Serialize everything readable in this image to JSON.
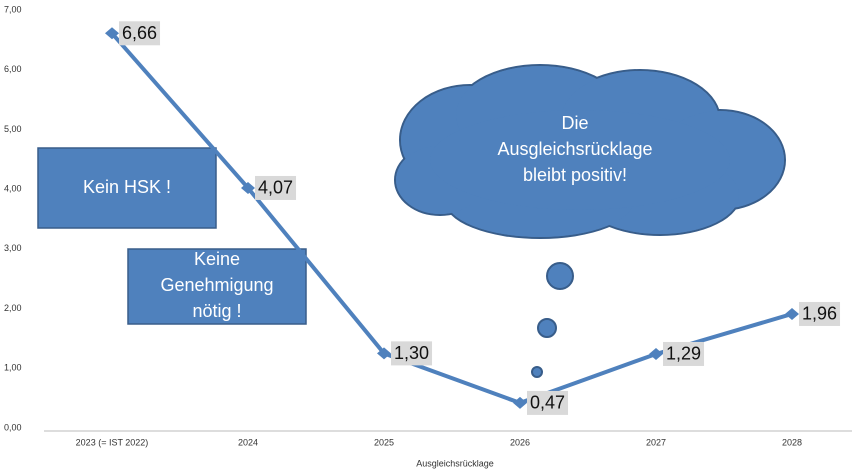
{
  "chart_data": {
    "type": "line",
    "categories": [
      "2023 (= IST 2022)",
      "2024",
      "2025",
      "2026",
      "2027",
      "2028"
    ],
    "series": [
      {
        "name": "Ausgleichsrücklage",
        "color": "#4f81bd",
        "values": [
          6.66,
          4.07,
          1.3,
          0.47,
          1.29,
          1.96
        ],
        "value_labels": [
          "6,66",
          "4,07",
          "1,30",
          "0,47",
          "1,29",
          "1,96"
        ]
      }
    ],
    "ylim": [
      0,
      7
    ],
    "yticks": [
      {
        "value": 0,
        "label": "0,00"
      },
      {
        "value": 1,
        "label": "1,00"
      },
      {
        "value": 2,
        "label": "2,00"
      },
      {
        "value": 3,
        "label": "3,00"
      },
      {
        "value": 4,
        "label": "4,00"
      },
      {
        "value": 5,
        "label": "5,00"
      },
      {
        "value": 6,
        "label": "6,00"
      },
      {
        "value": 7,
        "label": "7,00"
      }
    ],
    "grid": false,
    "annotations": [
      [
        "Kein HSK !"
      ],
      [
        "Keine",
        "Genehmigung",
        "nötig !"
      ],
      [
        "Die",
        "Ausgleichsrücklage",
        "bleibt positiv!"
      ]
    ]
  }
}
